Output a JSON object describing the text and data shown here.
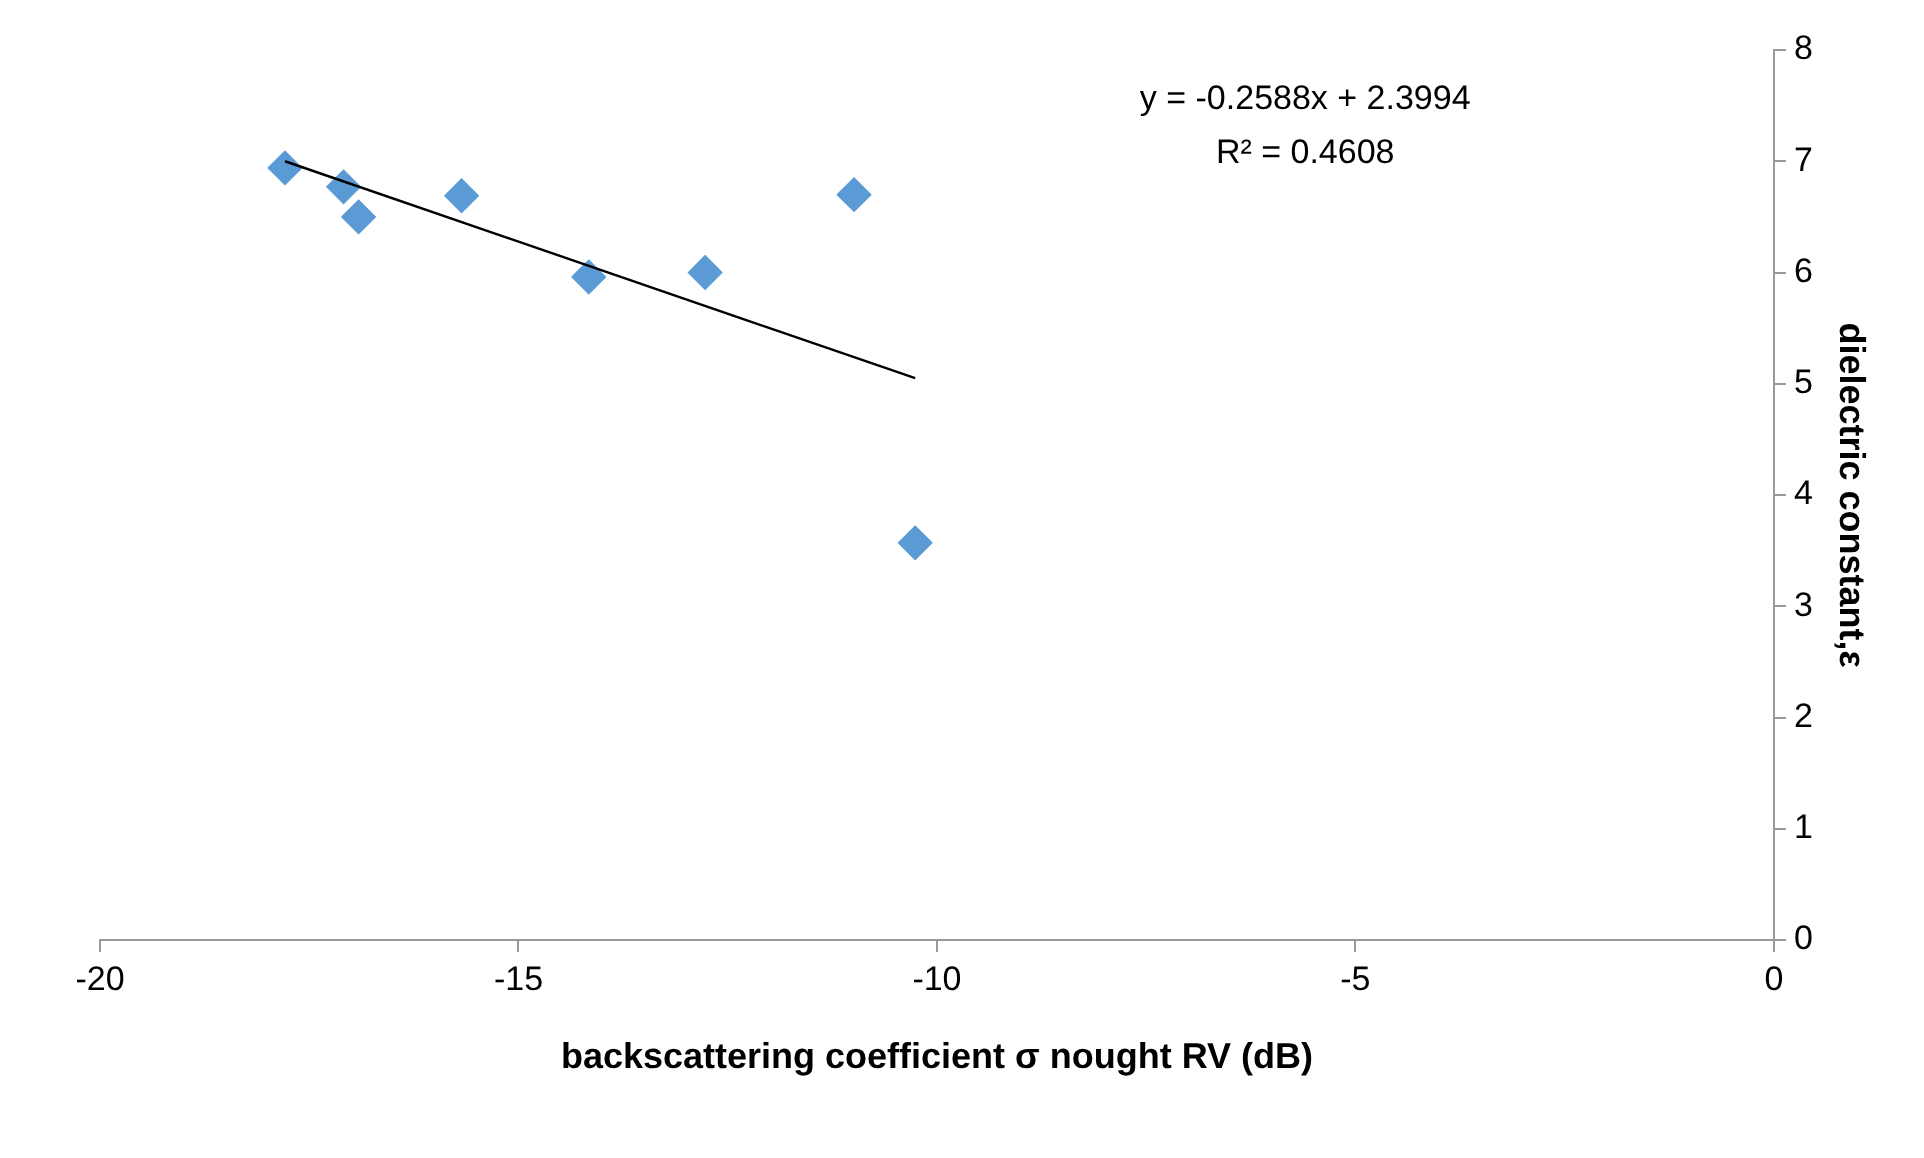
{
  "chart_data": {
    "type": "scatter",
    "xlabel": "backscattering coefficient σ nought RV (dB)",
    "ylabel": "dielectric constant,ε",
    "xlim": [
      -20,
      0
    ],
    "xticks": [
      -20,
      -15,
      -10,
      -5,
      0
    ],
    "ylim": [
      0,
      8
    ],
    "yticks": [
      0,
      1,
      2,
      3,
      4,
      5,
      6,
      7,
      8
    ],
    "grid": false,
    "legend": false,
    "annotations": [
      "y = -0.2588x + 2.3994",
      "R² = 0.4608"
    ],
    "series": [
      {
        "type": "scatter",
        "color": "#5b9bd5",
        "marker": "diamond",
        "x": [
          -17.79,
          -17.09,
          -16.91,
          -15.68,
          -14.16,
          -12.77,
          -10.99,
          -10.26
        ],
        "values": [
          6.94,
          6.77,
          6.5,
          6.69,
          5.96,
          6.0,
          6.7,
          3.57
        ]
      },
      {
        "type": "line",
        "color": "#000000",
        "marker": "none",
        "line_style": "solid",
        "x": [
          -17.79,
          -10.26
        ],
        "values": [
          7.0,
          5.05
        ]
      }
    ]
  }
}
